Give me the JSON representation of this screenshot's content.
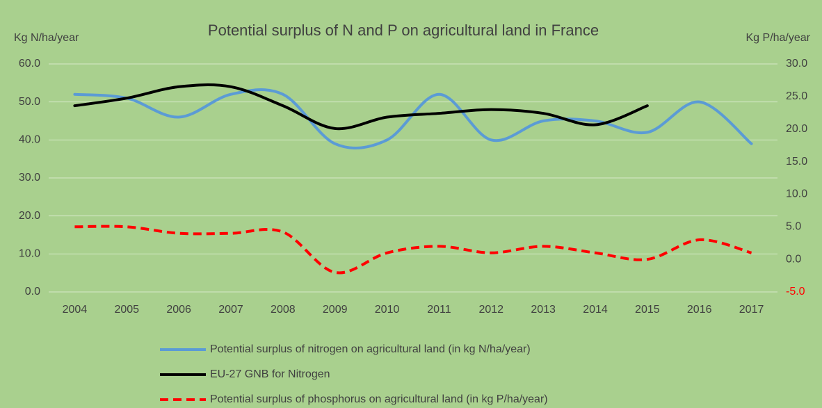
{
  "chart_data": {
    "type": "line",
    "title": "Potential surplus of N and P on agricultural land in France",
    "y_label": "Kg N/ha/year",
    "y2_label": "Kg P/ha/year",
    "categories": [
      "2004",
      "2005",
      "2006",
      "2007",
      "2008",
      "2009",
      "2010",
      "2011",
      "2012",
      "2013",
      "2014",
      "2015",
      "2016",
      "2017"
    ],
    "series": [
      {
        "name": "Potential surplus of nitrogen on agricultural land (in kg N/ha/year)",
        "color": "#5b9bd5",
        "dash": false,
        "values": [
          52,
          51,
          46,
          52,
          52,
          39,
          40,
          52,
          40,
          45,
          45,
          42,
          50,
          39
        ]
      },
      {
        "name": "EU-27 GNB for Nitrogen",
        "color": "#000000",
        "dash": false,
        "values": [
          49,
          51,
          54,
          54,
          49,
          43,
          46,
          47,
          48,
          47,
          44,
          49,
          null,
          null
        ]
      },
      {
        "name": "Potential surplus of phosphorus on agricultural land (in kg P/ha/year)",
        "color": "#ff0000",
        "dash": true,
        "axis": "y2",
        "values": [
          5,
          5,
          4,
          4,
          4.2,
          -2,
          1,
          2,
          1,
          2,
          1,
          0,
          3,
          1
        ]
      }
    ],
    "ylim": [
      0,
      60
    ],
    "yticks": [
      {
        "value": 0,
        "label": "0.0"
      },
      {
        "value": 10,
        "label": "10.0"
      },
      {
        "value": 20,
        "label": "20.0"
      },
      {
        "value": 30,
        "label": "30.0"
      },
      {
        "value": 40,
        "label": "40.0"
      },
      {
        "value": 50,
        "label": "50.0"
      },
      {
        "value": 60,
        "label": "60.0"
      }
    ],
    "y2lim": [
      -5,
      30
    ],
    "y2ticks": [
      {
        "value": -5,
        "label": "-5.0",
        "color": "#ff0000"
      },
      {
        "value": 0,
        "label": "0.0"
      },
      {
        "value": 5,
        "label": "5.0"
      },
      {
        "value": 10,
        "label": "10.0"
      },
      {
        "value": 15,
        "label": "15.0"
      },
      {
        "value": 20,
        "label": "20.0"
      },
      {
        "value": 25,
        "label": "25.0"
      },
      {
        "value": 30,
        "label": "30.0"
      }
    ],
    "grid": true,
    "legend": "bottom"
  }
}
